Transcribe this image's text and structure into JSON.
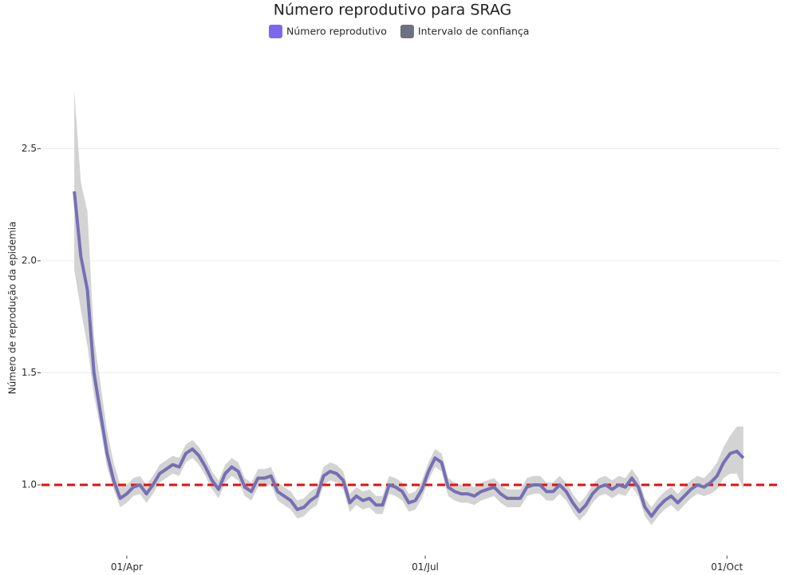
{
  "chart_data": {
    "type": "line",
    "title": "Número reprodutivo para SRAG",
    "y_label": "Número de reprodução da epidemia",
    "x": [
      "16/Mar",
      "18/Mar",
      "20/Mar",
      "22/Mar",
      "24/Mar",
      "26/Mar",
      "28/Mar",
      "30/Mar",
      "01/Apr",
      "03/Apr",
      "05/Apr",
      "07/Apr",
      "09/Apr",
      "11/Apr",
      "13/Apr",
      "15/Apr",
      "17/Apr",
      "19/Apr",
      "21/Apr",
      "23/Apr",
      "25/Apr",
      "27/Apr",
      "29/Apr",
      "01/May",
      "03/May",
      "05/May",
      "07/May",
      "09/May",
      "11/May",
      "13/May",
      "15/May",
      "17/May",
      "19/May",
      "21/May",
      "23/May",
      "25/May",
      "27/May",
      "29/May",
      "31/May",
      "02/Jun",
      "04/Jun",
      "06/Jun",
      "08/Jun",
      "10/Jun",
      "12/Jun",
      "14/Jun",
      "16/Jun",
      "18/Jun",
      "20/Jun",
      "22/Jun",
      "24/Jun",
      "26/Jun",
      "28/Jun",
      "30/Jun",
      "02/Jul",
      "04/Jul",
      "06/Jul",
      "08/Jul",
      "10/Jul",
      "12/Jul",
      "14/Jul",
      "16/Jul",
      "18/Jul",
      "20/Jul",
      "22/Jul",
      "24/Jul",
      "26/Jul",
      "28/Jul",
      "30/Jul",
      "01/Aug",
      "03/Aug",
      "05/Aug",
      "07/Aug",
      "09/Aug",
      "11/Aug",
      "13/Aug",
      "15/Aug",
      "17/Aug",
      "19/Aug",
      "21/Aug",
      "23/Aug",
      "25/Aug",
      "27/Aug",
      "29/Aug",
      "31/Aug",
      "02/Sep",
      "04/Sep",
      "06/Sep",
      "08/Sep",
      "10/Sep",
      "12/Sep",
      "14/Sep",
      "16/Sep",
      "18/Sep",
      "20/Sep",
      "22/Sep",
      "24/Sep",
      "26/Sep",
      "28/Sep",
      "30/Sep",
      "02/Oct",
      "04/Oct",
      "06/Oct"
    ],
    "series": [
      {
        "name": "Número reprodutivo",
        "color": "#7570b3",
        "legend_color": "#7b68ee",
        "values": [
          2.31,
          2.02,
          1.87,
          1.5,
          1.32,
          1.14,
          1.02,
          0.94,
          0.96,
          0.99,
          1.0,
          0.96,
          1.0,
          1.05,
          1.07,
          1.09,
          1.08,
          1.14,
          1.16,
          1.13,
          1.08,
          1.02,
          0.98,
          1.05,
          1.08,
          1.06,
          0.99,
          0.97,
          1.03,
          1.03,
          1.04,
          0.97,
          0.95,
          0.93,
          0.89,
          0.9,
          0.93,
          0.95,
          1.04,
          1.06,
          1.05,
          1.02,
          0.92,
          0.95,
          0.93,
          0.94,
          0.91,
          0.91,
          1.0,
          0.99,
          0.97,
          0.92,
          0.93,
          0.98,
          1.06,
          1.12,
          1.1,
          0.99,
          0.97,
          0.96,
          0.96,
          0.95,
          0.97,
          0.98,
          0.99,
          0.96,
          0.94,
          0.94,
          0.94,
          0.99,
          1.0,
          1.0,
          0.97,
          0.97,
          1.0,
          0.97,
          0.92,
          0.88,
          0.91,
          0.96,
          0.99,
          1.0,
          0.98,
          1.0,
          0.99,
          1.03,
          0.99,
          0.9,
          0.86,
          0.9,
          0.93,
          0.95,
          0.92,
          0.95,
          0.98,
          1.0,
          0.99,
          1.01,
          1.04,
          1.1,
          1.14,
          1.15,
          1.12
        ]
      },
      {
        "name": "Intervalo de confiança",
        "color": "#d3d3d3",
        "legend_color": "#6b7280",
        "lower": [
          1.96,
          1.78,
          1.62,
          1.4,
          1.25,
          1.08,
          0.98,
          0.9,
          0.92,
          0.95,
          0.96,
          0.92,
          0.96,
          1.01,
          1.03,
          1.05,
          1.04,
          1.1,
          1.12,
          1.09,
          1.04,
          0.98,
          0.94,
          1.01,
          1.04,
          1.02,
          0.95,
          0.93,
          0.99,
          0.99,
          1.0,
          0.93,
          0.91,
          0.89,
          0.85,
          0.86,
          0.89,
          0.91,
          1.0,
          1.02,
          1.01,
          0.98,
          0.88,
          0.91,
          0.89,
          0.9,
          0.87,
          0.87,
          0.96,
          0.95,
          0.93,
          0.88,
          0.89,
          0.94,
          1.02,
          1.08,
          1.06,
          0.95,
          0.93,
          0.92,
          0.92,
          0.91,
          0.93,
          0.94,
          0.95,
          0.92,
          0.9,
          0.9,
          0.9,
          0.95,
          0.96,
          0.96,
          0.93,
          0.93,
          0.96,
          0.93,
          0.88,
          0.84,
          0.87,
          0.92,
          0.95,
          0.96,
          0.94,
          0.96,
          0.95,
          0.99,
          0.95,
          0.86,
          0.82,
          0.86,
          0.89,
          0.91,
          0.88,
          0.91,
          0.94,
          0.96,
          0.95,
          0.96,
          0.98,
          1.03,
          1.05,
          1.05,
          0.98
        ],
        "upper": [
          2.76,
          2.35,
          2.22,
          1.66,
          1.45,
          1.24,
          1.1,
          1.0,
          1.0,
          1.03,
          1.04,
          1.0,
          1.04,
          1.09,
          1.11,
          1.13,
          1.12,
          1.18,
          1.2,
          1.17,
          1.12,
          1.06,
          1.02,
          1.09,
          1.12,
          1.1,
          1.03,
          1.01,
          1.07,
          1.07,
          1.08,
          1.01,
          0.99,
          0.97,
          0.93,
          0.94,
          0.97,
          0.99,
          1.08,
          1.1,
          1.09,
          1.06,
          0.96,
          0.99,
          0.97,
          0.98,
          0.95,
          0.95,
          1.04,
          1.03,
          1.01,
          0.96,
          0.97,
          1.02,
          1.1,
          1.16,
          1.14,
          1.03,
          1.01,
          1.0,
          1.0,
          0.99,
          1.01,
          1.02,
          1.03,
          1.0,
          0.98,
          0.98,
          0.98,
          1.03,
          1.04,
          1.04,
          1.01,
          1.01,
          1.04,
          1.01,
          0.96,
          0.92,
          0.95,
          1.0,
          1.03,
          1.04,
          1.02,
          1.04,
          1.03,
          1.07,
          1.03,
          0.94,
          0.9,
          0.94,
          0.97,
          0.99,
          0.96,
          0.99,
          1.02,
          1.04,
          1.03,
          1.06,
          1.1,
          1.17,
          1.22,
          1.26,
          1.26
        ]
      }
    ],
    "xlim": [
      "06/Mar",
      "17/Oct"
    ],
    "xticks": [
      "01/Apr",
      "01/Jul",
      "01/Oct"
    ],
    "ylim": [
      0.67,
      2.82
    ],
    "yticks": [
      {
        "value": 1,
        "label": "1.0"
      },
      1.5,
      {
        "value": 2,
        "label": "2.0"
      },
      2.5
    ],
    "grid": true,
    "reference_line": {
      "value": 1,
      "color": "#e01010"
    }
  }
}
